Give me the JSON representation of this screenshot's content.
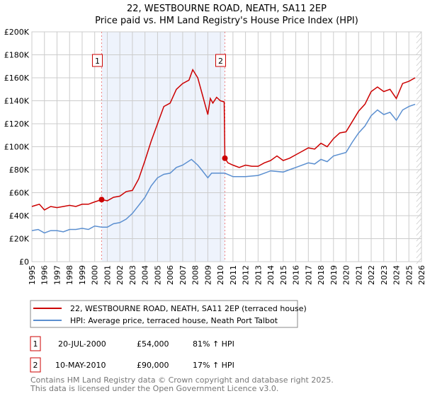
{
  "chart_data": {
    "type": "line",
    "title": "22, WESTBOURNE ROAD, NEATH, SA11 2EP",
    "subtitle": "Price paid vs. HM Land Registry's House Price Index (HPI)",
    "xlim": [
      1995,
      2026
    ],
    "ylim": [
      0,
      200000
    ],
    "x_ticks": [
      "1995",
      "1996",
      "1997",
      "1998",
      "1999",
      "2000",
      "2001",
      "2002",
      "2003",
      "2004",
      "2005",
      "2006",
      "2007",
      "2008",
      "2009",
      "2010",
      "2011",
      "2012",
      "2013",
      "2014",
      "2015",
      "2016",
      "2017",
      "2018",
      "2019",
      "2020",
      "2021",
      "2022",
      "2023",
      "2024",
      "2025",
      "2026"
    ],
    "y_ticks": [
      {
        "v": 0,
        "label": "£0"
      },
      {
        "v": 20000,
        "label": "£20K"
      },
      {
        "v": 40000,
        "label": "£40K"
      },
      {
        "v": 60000,
        "label": "£60K"
      },
      {
        "v": 80000,
        "label": "£80K"
      },
      {
        "v": 100000,
        "label": "£100K"
      },
      {
        "v": 120000,
        "label": "£120K"
      },
      {
        "v": 140000,
        "label": "£140K"
      },
      {
        "v": 160000,
        "label": "£160K"
      },
      {
        "v": 180000,
        "label": "£180K"
      },
      {
        "v": 200000,
        "label": "£200K"
      }
    ],
    "grid": true,
    "shaded_range": [
      2000.55,
      2010.36
    ],
    "forecast_hatch_from": 2025.6,
    "colors": {
      "property": "#cc0000",
      "hpi": "#5b8fd0",
      "shade": "#eef3fc",
      "marker_border": "#cc0000"
    },
    "series": [
      {
        "name": "22, WESTBOURNE ROAD, NEATH, SA11 2EP (terraced house)",
        "x": [
          1995,
          1995.3,
          1995.6,
          1996,
          1996.5,
          1997,
          1997.5,
          1998,
          1998.5,
          1999,
          1999.5,
          2000,
          2000.55,
          2001,
          2001.5,
          2002,
          2002.5,
          2003,
          2003.5,
          2004,
          2004.5,
          2005,
          2005.5,
          2006,
          2006.5,
          2007,
          2007.5,
          2007.8,
          2008.2,
          2008.5,
          2009,
          2009.2,
          2009.4,
          2009.7,
          2010,
          2010.3,
          2010.36,
          2010.6,
          2011,
          2011.5,
          2012,
          2012.5,
          2013,
          2013.5,
          2014,
          2014.5,
          2015,
          2015.5,
          2016,
          2016.5,
          2017,
          2017.5,
          2018,
          2018.5,
          2019,
          2019.5,
          2020,
          2020.5,
          2021,
          2021.5,
          2022,
          2022.5,
          2023,
          2023.5,
          2024,
          2024.5,
          2025,
          2025.5
        ],
        "y": [
          48000,
          49000,
          50000,
          45000,
          48000,
          47000,
          48000,
          49000,
          48000,
          50000,
          50000,
          52000,
          54000,
          53000,
          56000,
          57000,
          61000,
          62000,
          72000,
          88000,
          105000,
          120000,
          135000,
          138000,
          150000,
          155000,
          158000,
          167000,
          160000,
          148000,
          128000,
          142000,
          138000,
          143000,
          140000,
          139000,
          90000,
          86000,
          84000,
          82000,
          84000,
          83000,
          83000,
          86000,
          88000,
          92000,
          88000,
          90000,
          93000,
          96000,
          99000,
          98000,
          103000,
          100000,
          107000,
          112000,
          113000,
          122000,
          131000,
          137000,
          148000,
          152000,
          148000,
          150000,
          142000,
          155000,
          157000,
          160000
        ]
      },
      {
        "name": "HPI: Average price, terraced house, Neath Port Talbot",
        "x": [
          1995,
          1995.5,
          1996,
          1996.5,
          1997,
          1997.5,
          1998,
          1998.5,
          1999,
          1999.5,
          2000,
          2000.55,
          2001,
          2001.5,
          2002,
          2002.5,
          2003,
          2003.5,
          2004,
          2004.5,
          2005,
          2005.5,
          2006,
          2006.5,
          2007,
          2007.7,
          2008.2,
          2008.5,
          2009,
          2009.3,
          2010,
          2010.36,
          2011,
          2012,
          2013,
          2013.5,
          2014,
          2015,
          2015.5,
          2016,
          2017,
          2017.5,
          2018,
          2018.5,
          2019,
          2020,
          2020.5,
          2021,
          2021.5,
          2022,
          2022.5,
          2023,
          2023.5,
          2024,
          2024.5,
          2025,
          2025.5
        ],
        "y": [
          27000,
          28000,
          25000,
          27000,
          27000,
          26000,
          28000,
          28000,
          29000,
          28000,
          31000,
          30000,
          30000,
          33000,
          34000,
          37000,
          42000,
          49000,
          56000,
          66000,
          73000,
          76000,
          77000,
          82000,
          84000,
          89000,
          84000,
          80000,
          73000,
          77000,
          77000,
          77000,
          74000,
          74000,
          75000,
          77000,
          79000,
          78000,
          80000,
          82000,
          86000,
          85000,
          89000,
          87000,
          92000,
          95000,
          104000,
          112000,
          118000,
          127000,
          132000,
          128000,
          130000,
          123000,
          132000,
          135000,
          137000
        ]
      }
    ],
    "transactions": [
      {
        "num": "1",
        "x": 2000.55,
        "y": 54000,
        "date": "20-JUL-2000",
        "price": "£54,000",
        "hpi": "81% ↑ HPI"
      },
      {
        "num": "2",
        "x": 2010.36,
        "y": 90000,
        "date": "10-MAY-2010",
        "price": "£90,000",
        "hpi": "17% ↑ HPI"
      }
    ]
  },
  "footer": {
    "line1": "Contains HM Land Registry data © Crown copyright and database right 2025.",
    "line2": "This data is licensed under the Open Government Licence v3.0."
  }
}
